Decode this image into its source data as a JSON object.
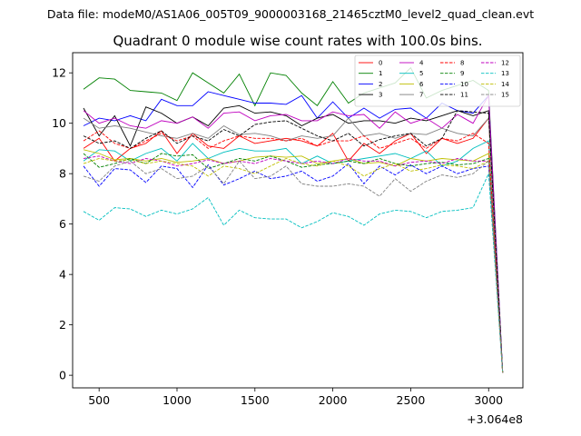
{
  "suptitle": "Data file: modeM0/AS1A06_005T09_9000003168_21465cztM0_level2_quad_clean.evt",
  "chart_data": {
    "type": "line",
    "title": "Quadrant 0 module wise count rates with 100.0s bins.",
    "xlabel": "",
    "ylabel": "",
    "x_offset_label": "+3.064e8",
    "xlim": [
      330,
      3220
    ],
    "ylim": [
      -0.5,
      12.8
    ],
    "xticks": [
      500,
      1000,
      1500,
      2000,
      2500,
      3000
    ],
    "yticks": [
      0,
      2,
      4,
      6,
      8,
      10,
      12
    ],
    "grid": false,
    "legend_position": "top-right",
    "x": [
      400,
      500,
      600,
      700,
      800,
      900,
      1000,
      1100,
      1200,
      1300,
      1400,
      1500,
      1600,
      1700,
      1800,
      1900,
      2000,
      2100,
      2200,
      2300,
      2400,
      2500,
      2600,
      2700,
      2800,
      2900,
      3000,
      3090
    ],
    "series": [
      {
        "name": "0",
        "color": "#ff0000",
        "dash": "solid",
        "values": [
          9.0,
          9.4,
          8.5,
          9.0,
          9.2,
          9.7,
          8.8,
          9.6,
          9.1,
          9.0,
          9.5,
          9.2,
          9.3,
          9.4,
          9.3,
          9.1,
          9.6,
          8.5,
          9.2,
          8.8,
          9.3,
          9.6,
          8.8,
          9.4,
          9.2,
          9.4,
          10.2,
          0.1
        ]
      },
      {
        "name": "1",
        "color": "#008000",
        "dash": "solid",
        "values": [
          11.35,
          11.8,
          11.75,
          11.3,
          11.25,
          11.2,
          10.9,
          12.0,
          11.6,
          11.2,
          11.95,
          10.7,
          12.0,
          11.9,
          11.2,
          10.7,
          11.65,
          10.8,
          11.2,
          11.4,
          11.6,
          12.2,
          11.0,
          11.3,
          11.5,
          11.7,
          11.3,
          0.1
        ]
      },
      {
        "name": "2",
        "color": "#0000ff",
        "dash": "solid",
        "values": [
          9.9,
          10.2,
          10.1,
          10.3,
          10.1,
          10.95,
          10.7,
          10.7,
          11.25,
          11.1,
          10.95,
          10.8,
          10.8,
          10.75,
          11.1,
          10.2,
          10.85,
          10.2,
          10.6,
          10.2,
          10.55,
          10.6,
          10.2,
          10.8,
          10.5,
          10.4,
          11.1,
          0.1
        ]
      },
      {
        "name": "3",
        "color": "#000000",
        "dash": "solid",
        "values": [
          10.6,
          9.5,
          10.3,
          9.1,
          10.65,
          10.4,
          10.0,
          10.25,
          9.9,
          10.6,
          10.7,
          10.4,
          10.45,
          10.3,
          9.9,
          10.2,
          10.35,
          10.0,
          10.1,
          10.1,
          10.0,
          10.2,
          10.1,
          10.3,
          10.5,
          10.3,
          10.5,
          0.1
        ]
      },
      {
        "name": "4",
        "color": "#bf00bf",
        "dash": "solid",
        "values": [
          10.5,
          10.0,
          10.2,
          9.9,
          9.8,
          10.1,
          10.0,
          10.25,
          9.8,
          10.4,
          10.45,
          10.1,
          10.3,
          10.35,
          10.1,
          10.1,
          10.45,
          10.3,
          10.35,
          9.8,
          10.45,
          10.0,
          10.2,
          9.8,
          10.35,
          10.0,
          11.1,
          0.1
        ]
      },
      {
        "name": "5",
        "color": "#00bfbf",
        "dash": "solid",
        "values": [
          8.5,
          8.95,
          8.9,
          8.5,
          8.8,
          9.0,
          8.5,
          9.2,
          8.6,
          8.85,
          9.0,
          8.9,
          8.9,
          9.0,
          8.4,
          8.7,
          8.4,
          8.5,
          8.6,
          8.7,
          8.8,
          8.6,
          8.9,
          8.3,
          8.5,
          9.0,
          9.3,
          0.1
        ]
      },
      {
        "name": "6",
        "color": "#bfbf00",
        "dash": "solid",
        "values": [
          8.95,
          8.8,
          8.55,
          8.6,
          8.5,
          8.6,
          8.45,
          8.5,
          8.6,
          8.4,
          8.5,
          8.65,
          8.7,
          8.65,
          8.7,
          8.4,
          8.5,
          8.6,
          8.4,
          8.45,
          8.3,
          8.6,
          8.5,
          8.6,
          8.55,
          8.5,
          8.8,
          0.1
        ]
      },
      {
        "name": "7",
        "color": "#808080",
        "dash": "solid",
        "values": [
          10.2,
          9.8,
          9.9,
          9.8,
          9.65,
          9.5,
          9.4,
          9.6,
          9.4,
          9.9,
          9.55,
          9.6,
          9.5,
          9.3,
          9.5,
          9.4,
          9.5,
          10.2,
          9.5,
          9.6,
          9.4,
          9.6,
          9.55,
          9.8,
          9.6,
          9.5,
          10.2,
          0.1
        ]
      },
      {
        "name": "8",
        "color": "#ff0000",
        "dash": "dashed",
        "values": [
          9.3,
          9.7,
          9.2,
          9.0,
          9.3,
          9.6,
          9.3,
          9.5,
          9.0,
          9.3,
          9.5,
          9.4,
          9.4,
          9.3,
          9.4,
          9.1,
          9.3,
          9.3,
          9.5,
          9.0,
          9.2,
          9.4,
          9.0,
          9.4,
          9.3,
          9.6,
          9.2,
          0.1
        ]
      },
      {
        "name": "9",
        "color": "#008000",
        "dash": "dashed",
        "values": [
          8.8,
          8.25,
          8.4,
          8.6,
          8.4,
          8.8,
          8.7,
          8.75,
          8.2,
          8.4,
          8.6,
          8.5,
          8.7,
          8.5,
          8.25,
          8.35,
          8.4,
          8.5,
          8.4,
          8.6,
          8.4,
          8.3,
          8.4,
          8.45,
          8.35,
          8.4,
          8.6,
          0.1
        ]
      },
      {
        "name": "10",
        "color": "#0000ff",
        "dash": "dashed",
        "values": [
          8.3,
          7.5,
          8.2,
          8.15,
          7.65,
          8.3,
          8.2,
          7.45,
          8.35,
          7.55,
          7.8,
          8.1,
          7.8,
          7.9,
          8.1,
          7.7,
          7.9,
          8.4,
          7.6,
          8.3,
          7.95,
          8.35,
          8.0,
          8.3,
          8.0,
          8.2,
          8.3,
          0.1
        ]
      },
      {
        "name": "11",
        "color": "#000000",
        "dash": "dashed",
        "values": [
          9.5,
          9.2,
          9.3,
          9.0,
          9.4,
          9.7,
          9.2,
          9.5,
          9.3,
          9.75,
          9.5,
          9.95,
          10.05,
          10.1,
          9.8,
          9.5,
          9.3,
          9.6,
          9.1,
          9.35,
          9.5,
          9.6,
          9.1,
          9.4,
          10.5,
          10.45,
          10.4,
          0.1
        ]
      },
      {
        "name": "12",
        "color": "#bf00bf",
        "dash": "dashed",
        "values": [
          8.6,
          8.7,
          8.5,
          8.4,
          8.6,
          8.5,
          8.3,
          8.4,
          8.55,
          8.4,
          8.5,
          8.4,
          8.6,
          8.5,
          8.4,
          8.5,
          8.4,
          8.6,
          8.5,
          8.5,
          8.3,
          8.45,
          8.5,
          8.4,
          8.6,
          8.5,
          8.5,
          0.1
        ]
      },
      {
        "name": "13",
        "color": "#00bfbf",
        "dash": "dashed",
        "values": [
          6.5,
          6.15,
          6.65,
          6.6,
          6.3,
          6.55,
          6.4,
          6.6,
          7.05,
          5.95,
          6.55,
          6.25,
          6.2,
          6.2,
          5.85,
          6.1,
          6.45,
          6.3,
          5.95,
          6.4,
          6.55,
          6.5,
          6.25,
          6.5,
          6.55,
          6.65,
          8.0,
          0.1
        ]
      },
      {
        "name": "14",
        "color": "#bfbf00",
        "dash": "dashed",
        "values": [
          8.4,
          8.6,
          8.5,
          8.55,
          8.4,
          8.5,
          8.4,
          8.3,
          7.9,
          8.3,
          8.2,
          8.0,
          8.3,
          8.6,
          8.4,
          8.3,
          8.5,
          8.3,
          7.9,
          8.2,
          8.4,
          8.1,
          8.2,
          8.35,
          8.3,
          8.2,
          8.5,
          0.1
        ]
      },
      {
        "name": "15",
        "color": "#808080",
        "dash": "dashed",
        "values": [
          7.9,
          7.7,
          8.3,
          8.5,
          8.0,
          8.2,
          7.8,
          7.9,
          8.3,
          7.6,
          8.5,
          7.8,
          7.9,
          8.3,
          7.6,
          7.5,
          7.5,
          7.6,
          7.5,
          7.1,
          7.8,
          7.3,
          7.7,
          7.95,
          7.85,
          8.0,
          8.5,
          0.1
        ]
      }
    ]
  }
}
